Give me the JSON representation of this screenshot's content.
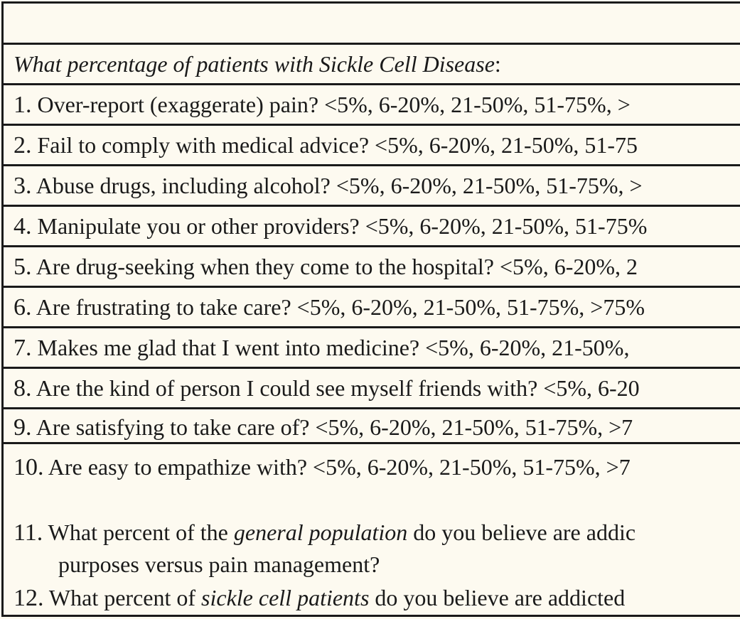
{
  "header": {
    "title": ""
  },
  "intro": {
    "text": "What percentage of patients with Sickle Cell Disease",
    "suffix": ":"
  },
  "questions": [
    {
      "number": "1.",
      "text": " Over-report (exaggerate) pain?  <5%, 6-20%, 21-50%, 51-75%, >"
    },
    {
      "number": "2.",
      "text": " Fail to comply with medical advice? <5%, 6-20%, 21-50%, 51-75"
    },
    {
      "number": "3.",
      "text": " Abuse drugs, including alcohol? <5%, 6-20%, 21-50%, 51-75%, >"
    },
    {
      "number": "4.",
      "text": " Manipulate you or other providers? <5%, 6-20%, 21-50%, 51-75%"
    },
    {
      "number": "5.",
      "text": " Are drug-seeking when they come to the hospital? <5%, 6-20%, 2"
    },
    {
      "number": "6.",
      "text": " Are frustrating to take care? <5%, 6-20%, 21-50%, 51-75%, >75%"
    },
    {
      "number": "7.",
      "text": " Makes me glad that I went into medicine? <5%, 6-20%, 21-50%,"
    },
    {
      "number": "8.",
      "text": " Are the kind of person I could see myself friends with? <5%, 6-20"
    },
    {
      "number": "9.",
      "text": " Are satisfying to take care of? <5%, 6-20%, 21-50%, 51-75%, >7"
    },
    {
      "number": "10.",
      "text": " Are easy to empathize with? <5%, 6-20%, 21-50%, 51-75%, >7"
    }
  ],
  "q11": {
    "number": "11.",
    "pre": " What percent of the ",
    "emph": "general population",
    "post": " do you believe are addic",
    "line2": "purposes versus pain management?"
  },
  "q12": {
    "number": "12.",
    "pre": " What percent of  ",
    "emph": "sickle cell patients",
    "post": " do you believe are addicted"
  }
}
